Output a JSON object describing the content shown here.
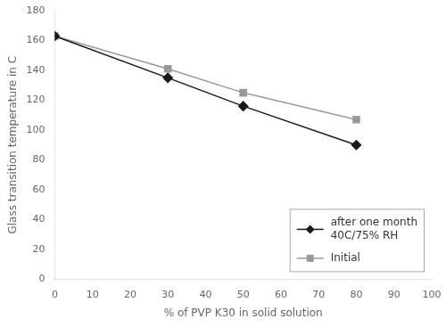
{
  "chart_data": {
    "type": "line",
    "xlabel": "% of PVP K30 in solid solution",
    "ylabel": "Glass transition temperature in C",
    "x": [
      0,
      30,
      50,
      80
    ],
    "series": [
      {
        "name": "after one month\n40C/75% RH",
        "color": "#1a1a1a",
        "marker": "diamond",
        "values": [
          163,
          135,
          116,
          90
        ]
      },
      {
        "name": "Initial",
        "color": "#999999",
        "marker": "square",
        "values": [
          163,
          141,
          125,
          107
        ]
      }
    ],
    "xlim": [
      0,
      100
    ],
    "ylim": [
      0,
      180
    ],
    "xticks": [
      0,
      10,
      20,
      30,
      40,
      50,
      60,
      70,
      80,
      90,
      100
    ],
    "yticks": [
      0,
      20,
      40,
      60,
      80,
      100,
      120,
      140,
      160,
      180
    ],
    "grid": false,
    "legend": "lower right"
  }
}
